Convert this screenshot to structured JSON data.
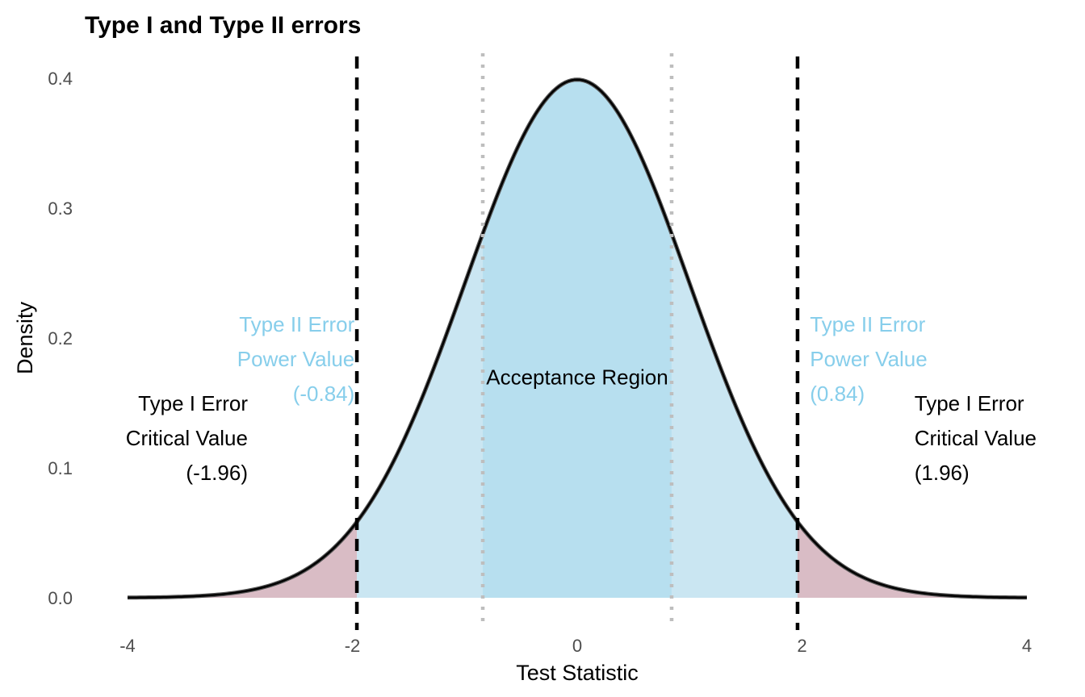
{
  "chart_data": {
    "type": "area",
    "title": "Type I and Type II errors",
    "xlabel": "Test Statistic",
    "ylabel": "Density",
    "xlim": [
      -4,
      4
    ],
    "ylim": [
      0,
      0.4
    ],
    "x_ticks": [
      "-4",
      "-2",
      "0",
      "2",
      "4"
    ],
    "x_tick_values": [
      -4,
      -2,
      0,
      2,
      4
    ],
    "y_ticks": [
      "0.0",
      "0.1",
      "0.2",
      "0.3",
      "0.4"
    ],
    "y_tick_values": [
      0,
      0.1,
      0.2,
      0.3,
      0.4
    ],
    "grid": false,
    "curve": {
      "distribution": "standard normal",
      "x": [
        -4,
        -3.5,
        -3,
        -2.5,
        -2,
        -1.96,
        -1.5,
        -1,
        -0.84,
        -0.5,
        0,
        0.5,
        0.84,
        1,
        1.5,
        1.96,
        2,
        2.5,
        3,
        3.5,
        4
      ],
      "y": [
        0.0001,
        0.0009,
        0.0044,
        0.0175,
        0.054,
        0.0584,
        0.1295,
        0.242,
        0.2803,
        0.3521,
        0.3989,
        0.3521,
        0.2803,
        0.242,
        0.1295,
        0.0584,
        0.054,
        0.0175,
        0.0044,
        0.0009,
        0.0001
      ]
    },
    "regions": [
      {
        "from": -4,
        "to": -1.96,
        "color": "#d9bcc5"
      },
      {
        "from": -1.96,
        "to": -0.84,
        "color": "#cae6f2"
      },
      {
        "from": -0.84,
        "to": 0.84,
        "color": "#b7dfef"
      },
      {
        "from": 0.84,
        "to": 1.96,
        "color": "#cae6f2"
      },
      {
        "from": 1.96,
        "to": 4,
        "color": "#d9bcc5"
      }
    ],
    "critical_values": [
      -1.96,
      1.96
    ],
    "power_values": [
      -0.84,
      0.84
    ],
    "annotations": [
      {
        "id": "acceptance",
        "lines": [
          "Acceptance Region"
        ],
        "x": 0,
        "y": 0.17,
        "align": "middle",
        "color": "#000000"
      },
      {
        "id": "type2-left",
        "lines": [
          "Type II Error",
          "Power Value",
          "(-0.84)"
        ],
        "x": -1.98,
        "y": 0.184,
        "align": "end",
        "color": "#87ceeb"
      },
      {
        "id": "type2-right",
        "lines": [
          "Type II Error",
          "Power Value",
          "(0.84)"
        ],
        "x": 2.07,
        "y": 0.184,
        "align": "start",
        "color": "#87ceeb"
      },
      {
        "id": "type1-left",
        "lines": [
          "Type I Error",
          "Critical Value",
          "(-1.96)"
        ],
        "x": -2.93,
        "y": 0.123,
        "align": "end",
        "color": "#000000"
      },
      {
        "id": "type1-right",
        "lines": [
          "Type I Error",
          "Critical Value",
          "(1.96)"
        ],
        "x": 3,
        "y": 0.123,
        "align": "start",
        "color": "#000000"
      }
    ],
    "colors": {
      "curve": "#000000",
      "critical_line": "#000000",
      "power_line": "#bebebe",
      "tail_fill": "#d9bcc5",
      "beta_fill": "#cae6f2",
      "center_fill": "#b7dfef",
      "type2_text": "#87ceeb"
    }
  }
}
